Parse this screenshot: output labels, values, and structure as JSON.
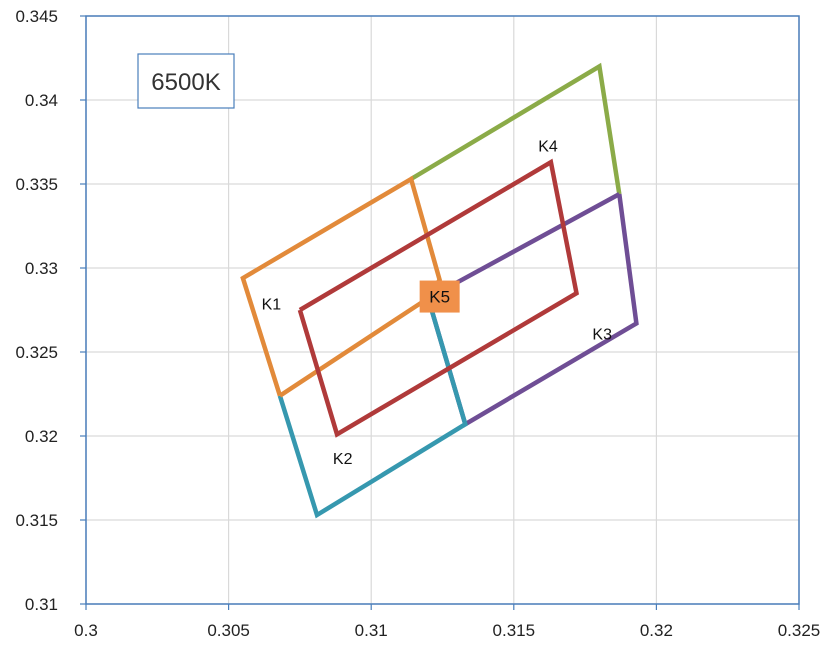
{
  "chart_data": {
    "type": "line",
    "title": "6500K",
    "xlabel": "",
    "ylabel": "",
    "xlim": [
      0.3,
      0.325
    ],
    "ylim": [
      0.31,
      0.345
    ],
    "x_ticks": [
      "0.3",
      "0.305",
      "0.31",
      "0.315",
      "0.32",
      "0.325"
    ],
    "y_ticks": [
      "0.31",
      "0.315",
      "0.32",
      "0.325",
      "0.33",
      "0.335",
      "0.34",
      "0.345"
    ],
    "grid": true,
    "series": [
      {
        "color": "#8BAB48",
        "points": [
          [
            0.3114,
            0.3353
          ],
          [
            0.318,
            0.342
          ],
          [
            0.3187,
            0.3344
          ]
        ]
      },
      {
        "color": "#6F4E95",
        "points": [
          [
            0.3187,
            0.3344
          ],
          [
            0.3193,
            0.3267
          ],
          [
            0.3133,
            0.3207
          ],
          [
            0.312,
            0.3282
          ],
          [
            0.3187,
            0.3344
          ]
        ]
      },
      {
        "color": "#3698AF",
        "points": [
          [
            0.312,
            0.3282
          ],
          [
            0.3133,
            0.3207
          ],
          [
            0.3081,
            0.3153
          ],
          [
            0.3068,
            0.3224
          ]
        ]
      },
      {
        "color": "#E28A3A",
        "points": [
          [
            0.3068,
            0.3224
          ],
          [
            0.3055,
            0.3294
          ],
          [
            0.3114,
            0.3353
          ],
          [
            0.3124,
            0.3293
          ],
          [
            0.312,
            0.3282
          ],
          [
            0.3068,
            0.3224
          ]
        ]
      },
      {
        "name": "K4",
        "color": "#B03A3A",
        "points": [
          [
            0.3075,
            0.3275
          ],
          [
            0.3163,
            0.3363
          ],
          [
            0.3172,
            0.3285
          ],
          [
            0.3088,
            0.3201
          ],
          [
            0.3075,
            0.3275
          ]
        ]
      }
    ],
    "point_labels": [
      {
        "text": "K1",
        "x": 0.3065,
        "y": 0.3279
      },
      {
        "text": "K2",
        "x": 0.309,
        "y": 0.3187
      },
      {
        "text": "K3",
        "x": 0.3181,
        "y": 0.3261
      },
      {
        "text": "K4",
        "x": 0.3162,
        "y": 0.3373
      },
      {
        "text": "K5",
        "x": 0.3124,
        "y": 0.3283
      }
    ],
    "title_box": {
      "text": "6500K",
      "border_color": "#4A7EBB"
    },
    "k5_box_color": "#F0904A",
    "axis_color": "#4A7EBB",
    "grid_color": "#D9D9D9"
  }
}
